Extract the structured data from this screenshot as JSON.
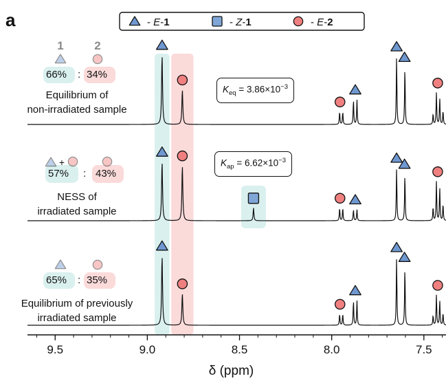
{
  "panel_label": "a",
  "legend": [
    {
      "symbol": "triangle",
      "dash": "-",
      "italic": "E",
      "sep": "-",
      "bold": "1"
    },
    {
      "symbol": "square",
      "dash": "-",
      "italic": "Z",
      "sep": "-",
      "bold": "1"
    },
    {
      "symbol": "circle",
      "dash": "-",
      "italic": "E",
      "sep": "-",
      "bold": "2"
    }
  ],
  "colors": {
    "triangle_fill": "#6f98d1",
    "square_fill": "#7fa6d6",
    "circle_fill": "#f08080",
    "teal_band": "#d9f0ee",
    "pink_band": "#fbdada",
    "line": "#111111"
  },
  "header_numbers": {
    "left": "1",
    "right": "2"
  },
  "spectra": [
    {
      "name": "equilibrium-non-irradiated",
      "ratio_left": "66%",
      "ratio_sep": ":",
      "ratio_right": "34%",
      "caption_lines": [
        "Equilibrium of",
        "non-irradiated sample"
      ],
      "constant": {
        "symbol": "K",
        "sub": "eq",
        "eq": " = 3.86×10",
        "sup": "−3"
      }
    },
    {
      "name": "ness-irradiated",
      "ratio_left": "57%",
      "ratio_sep": ":",
      "ratio_right": "43%",
      "plus": "+",
      "caption_lines": [
        "NESS of",
        "irradiated sample"
      ],
      "constant": {
        "symbol": "K",
        "sub": "ap",
        "eq": " = 6.62×10",
        "sup": "−3"
      }
    },
    {
      "name": "equilibrium-previously-irradiated",
      "ratio_left": "65%",
      "ratio_sep": ":",
      "ratio_right": "35%",
      "caption_lines": [
        "Equilibrium of previously",
        "irradiated sample"
      ]
    }
  ],
  "chart_data": {
    "type": "line",
    "xlabel": "δ (ppm)",
    "x_reversed": true,
    "xlim": [
      9.65,
      7.38
    ],
    "x_ticks": [
      "9.5",
      "9.0",
      "8.5",
      "8.0",
      "7.5"
    ],
    "x_tick_values": [
      9.5,
      9.0,
      8.5,
      8.0,
      7.5
    ],
    "highlight_bands": [
      {
        "from": 8.96,
        "to": 8.88,
        "color": "teal"
      },
      {
        "from": 8.87,
        "to": 8.75,
        "color": "pink"
      }
    ],
    "series": [
      {
        "peaks": [
          {
            "ppm": 8.92,
            "h": 0.92,
            "w": 0.006
          },
          {
            "ppm": 8.81,
            "h": 0.46,
            "w": 0.006
          },
          {
            "ppm": 7.957,
            "h": 0.17,
            "w": 0.004
          },
          {
            "ppm": 7.94,
            "h": 0.17,
            "w": 0.004
          },
          {
            "ppm": 7.882,
            "h": 0.33,
            "w": 0.004
          },
          {
            "ppm": 7.863,
            "h": 0.33,
            "w": 0.004
          },
          {
            "ppm": 7.648,
            "h": 0.9,
            "w": 0.004
          },
          {
            "ppm": 7.603,
            "h": 0.76,
            "w": 0.004
          },
          {
            "ppm": 7.45,
            "h": 0.14,
            "w": 0.004
          },
          {
            "ppm": 7.432,
            "h": 0.42,
            "w": 0.004
          },
          {
            "ppm": 7.414,
            "h": 0.35,
            "w": 0.004
          },
          {
            "ppm": 7.396,
            "h": 0.18,
            "w": 0.004
          }
        ],
        "markers": [
          {
            "symbol": "triangle",
            "ppm": 8.92
          },
          {
            "symbol": "circle",
            "ppm": 8.81
          },
          {
            "symbol": "circle",
            "ppm": 7.955
          },
          {
            "symbol": "triangle",
            "ppm": 7.872
          },
          {
            "symbol": "triangle",
            "ppm": 7.648
          },
          {
            "symbol": "triangle",
            "ppm": 7.605
          },
          {
            "symbol": "circle",
            "ppm": 7.425
          }
        ]
      },
      {
        "peaks": [
          {
            "ppm": 8.92,
            "h": 0.78,
            "w": 0.006
          },
          {
            "ppm": 8.81,
            "h": 0.73,
            "w": 0.006
          },
          {
            "ppm": 8.424,
            "h": 0.17,
            "w": 0.005
          },
          {
            "ppm": 7.957,
            "h": 0.17,
            "w": 0.004
          },
          {
            "ppm": 7.94,
            "h": 0.17,
            "w": 0.004
          },
          {
            "ppm": 7.882,
            "h": 0.15,
            "w": 0.004
          },
          {
            "ppm": 7.863,
            "h": 0.15,
            "w": 0.004
          },
          {
            "ppm": 7.648,
            "h": 0.7,
            "w": 0.004
          },
          {
            "ppm": 7.603,
            "h": 0.62,
            "w": 0.004
          },
          {
            "ppm": 7.45,
            "h": 0.18,
            "w": 0.004
          },
          {
            "ppm": 7.432,
            "h": 0.52,
            "w": 0.004
          },
          {
            "ppm": 7.414,
            "h": 0.44,
            "w": 0.004
          },
          {
            "ppm": 7.396,
            "h": 0.22,
            "w": 0.004
          }
        ],
        "markers": [
          {
            "symbol": "triangle",
            "ppm": 8.92
          },
          {
            "symbol": "circle",
            "ppm": 8.81
          },
          {
            "symbol": "square",
            "ppm": 8.424
          },
          {
            "symbol": "circle",
            "ppm": 7.955
          },
          {
            "symbol": "triangle",
            "ppm": 7.872
          },
          {
            "symbol": "triangle",
            "ppm": 7.648
          },
          {
            "symbol": "triangle",
            "ppm": 7.605
          },
          {
            "symbol": "circle",
            "ppm": 7.425
          }
        ]
      },
      {
        "peaks": [
          {
            "ppm": 8.92,
            "h": 0.92,
            "w": 0.006
          },
          {
            "ppm": 8.81,
            "h": 0.42,
            "w": 0.006
          },
          {
            "ppm": 7.957,
            "h": 0.15,
            "w": 0.004
          },
          {
            "ppm": 7.94,
            "h": 0.15,
            "w": 0.004
          },
          {
            "ppm": 7.882,
            "h": 0.33,
            "w": 0.004
          },
          {
            "ppm": 7.863,
            "h": 0.33,
            "w": 0.004
          },
          {
            "ppm": 7.648,
            "h": 0.9,
            "w": 0.004
          },
          {
            "ppm": 7.603,
            "h": 0.77,
            "w": 0.004
          },
          {
            "ppm": 7.45,
            "h": 0.13,
            "w": 0.004
          },
          {
            "ppm": 7.432,
            "h": 0.4,
            "w": 0.004
          },
          {
            "ppm": 7.414,
            "h": 0.33,
            "w": 0.004
          },
          {
            "ppm": 7.396,
            "h": 0.16,
            "w": 0.004
          }
        ],
        "markers": [
          {
            "symbol": "triangle",
            "ppm": 8.92
          },
          {
            "symbol": "circle",
            "ppm": 8.81
          },
          {
            "symbol": "circle",
            "ppm": 7.955
          },
          {
            "symbol": "triangle",
            "ppm": 7.872
          },
          {
            "symbol": "triangle",
            "ppm": 7.648
          },
          {
            "symbol": "triangle",
            "ppm": 7.605
          },
          {
            "symbol": "circle",
            "ppm": 7.425
          }
        ]
      }
    ]
  }
}
